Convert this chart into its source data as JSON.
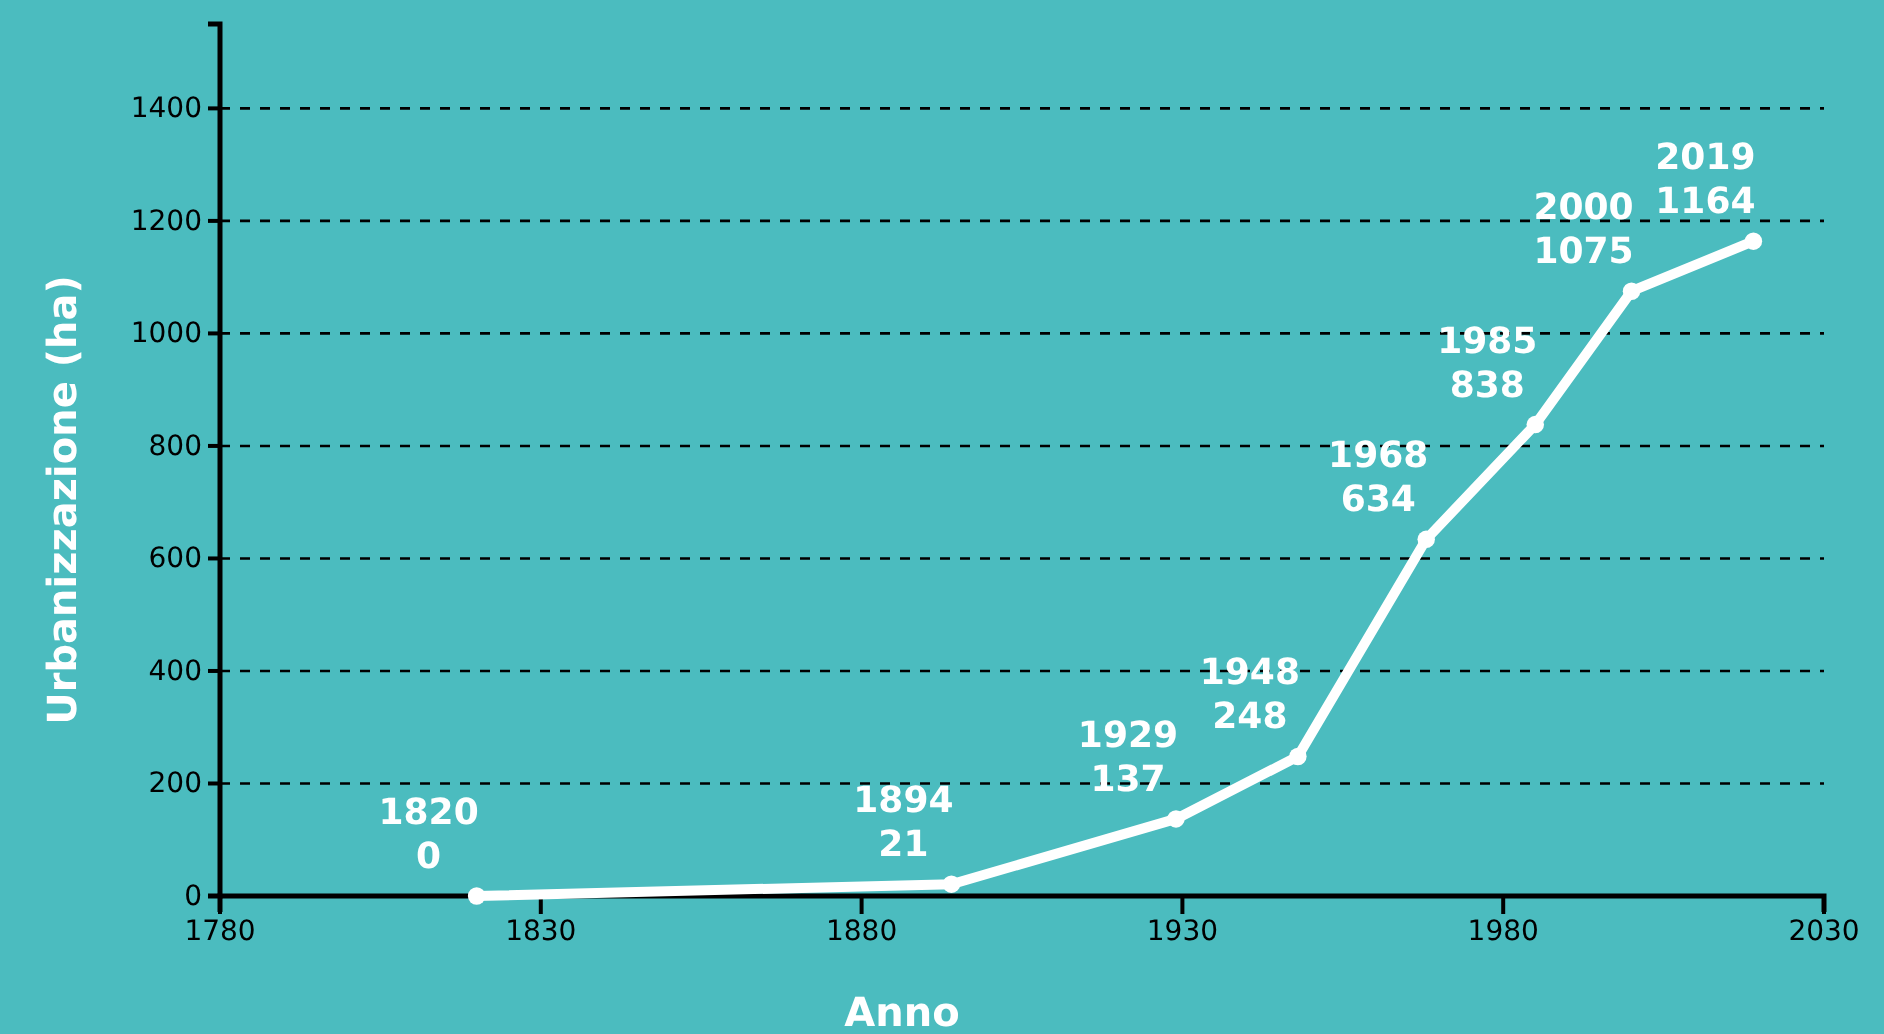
{
  "chart_data": {
    "type": "line",
    "xlabel": "Anno",
    "ylabel": "Urbanizzazione (ha)",
    "x": [
      1820,
      1894,
      1929,
      1948,
      1968,
      1985,
      2000,
      2019
    ],
    "series": [
      {
        "color": "#ffffff",
        "values": [
          0,
          21,
          137,
          248,
          634,
          838,
          1075,
          1164
        ]
      }
    ],
    "annotations": [
      {
        "text": "1820",
        "x": 1820,
        "y": 0
      },
      {
        "text": "1894",
        "x": 1894,
        "y": 21
      },
      {
        "text": "1929",
        "x": 1929,
        "y": 137
      },
      {
        "text": "1948",
        "x": 1948,
        "y": 248
      },
      {
        "text": "1968",
        "x": 1968,
        "y": 634
      },
      {
        "text": "1985",
        "x": 1985,
        "y": 838
      },
      {
        "text": "2000",
        "x": 2000,
        "y": 1075
      },
      {
        "text": "2019",
        "x": 2019,
        "y": 1164
      }
    ],
    "xlim": [
      1780,
      2030
    ],
    "xticks": [
      1780,
      1830,
      1880,
      1930,
      1980,
      2030
    ],
    "ylim": [
      0,
      1550
    ],
    "yticks": [
      0,
      200,
      400,
      600,
      800,
      1000,
      1200,
      1400
    ],
    "grid": "y",
    "marker": "circle",
    "line_style": "solid",
    "data_labels": true
  }
}
